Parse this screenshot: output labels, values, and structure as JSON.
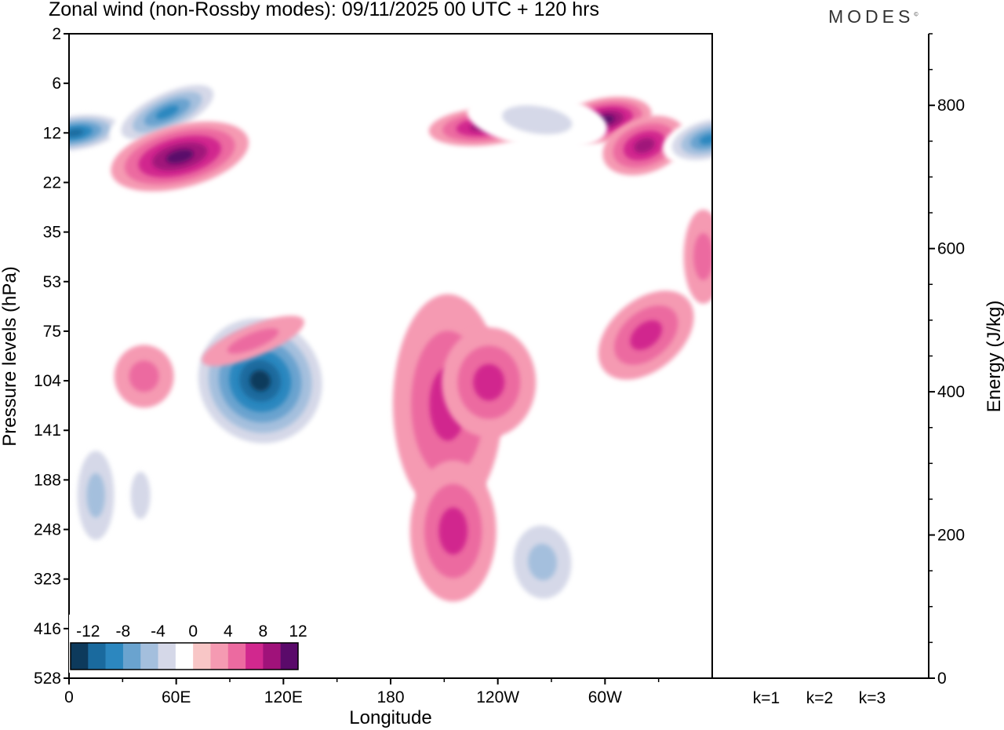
{
  "header": {
    "title": "Zonal wind (non-Rossby modes):  09/11/2025  00 UTC  + 120 hrs",
    "brand": "MODES",
    "brand_mark": "©"
  },
  "chart_data": [
    {
      "type": "heatmap",
      "title": "Zonal wind (non-Rossby modes):  09/11/2025  00 UTC  + 120 hrs",
      "xlabel": "Longitude",
      "ylabel": "Pressure levels (hPa)",
      "x_ticks": [
        "0",
        "60E",
        "120E",
        "180",
        "120W",
        "60W"
      ],
      "x_tick_values": [
        0,
        60,
        120,
        180,
        240,
        300
      ],
      "xlim": [
        0,
        360
      ],
      "y_ticks": [
        "2",
        "6",
        "12",
        "22",
        "35",
        "53",
        "75",
        "104",
        "141",
        "188",
        "248",
        "323",
        "416",
        "528"
      ],
      "colorbar": {
        "labels": [
          "-12",
          "-8",
          "-4",
          "0",
          "4",
          "8",
          "12"
        ],
        "levels": [
          -14,
          -12,
          -10,
          -8,
          -6,
          -4,
          -2,
          2,
          4,
          6,
          8,
          10,
          12,
          14
        ],
        "colors": [
          "#0d3a5c",
          "#1a6a9e",
          "#2c87bf",
          "#6aa3cf",
          "#a4bfdd",
          "#d5d8e8",
          "#ffffff",
          "#f8c6c6",
          "#f59ab2",
          "#ec6aa0",
          "#d1288e",
          "#a0127a",
          "#5a0a6a"
        ]
      },
      "features": [
        {
          "lon": 3,
          "lev": 12,
          "value": -12
        },
        {
          "lon": 55,
          "lev": 9,
          "value": -10
        },
        {
          "lon": 62,
          "lev": 16,
          "value": 10
        },
        {
          "lon": 107,
          "lev": 104,
          "value": -14
        },
        {
          "lon": 103,
          "lev": 80,
          "value": 4
        },
        {
          "lon": 42,
          "lev": 101,
          "value": 4
        },
        {
          "lon": 232,
          "lev": 11,
          "value": 8
        },
        {
          "lon": 300,
          "lev": 10,
          "value": 10
        },
        {
          "lon": 322,
          "lev": 14,
          "value": 8
        },
        {
          "lon": 358,
          "lev": 13,
          "value": -10
        },
        {
          "lon": 323,
          "lev": 77,
          "value": 6
        },
        {
          "lon": 212,
          "lev": 120,
          "value": 6
        },
        {
          "lon": 235,
          "lev": 105,
          "value": 6
        },
        {
          "lon": 215,
          "lev": 250,
          "value": 6
        },
        {
          "lon": 265,
          "lev": 295,
          "value": -6
        },
        {
          "lon": 15,
          "lev": 205,
          "value": -6
        },
        {
          "lon": 40,
          "lev": 205,
          "value": -4
        },
        {
          "lon": 262,
          "lev": 10,
          "value": -4
        },
        {
          "lon": 355,
          "lev": 43,
          "value": 4
        }
      ]
    },
    {
      "type": "bar",
      "categories": [
        "k=1",
        "k=2",
        "k=3"
      ],
      "values": [
        1,
        1,
        1
      ],
      "ylabel": "Energy (J/kg)",
      "ylim": [
        0,
        900
      ],
      "y_ticks": [
        "0",
        "200",
        "400",
        "600",
        "800"
      ],
      "y_tick_values": [
        0,
        200,
        400,
        600,
        800
      ]
    }
  ]
}
